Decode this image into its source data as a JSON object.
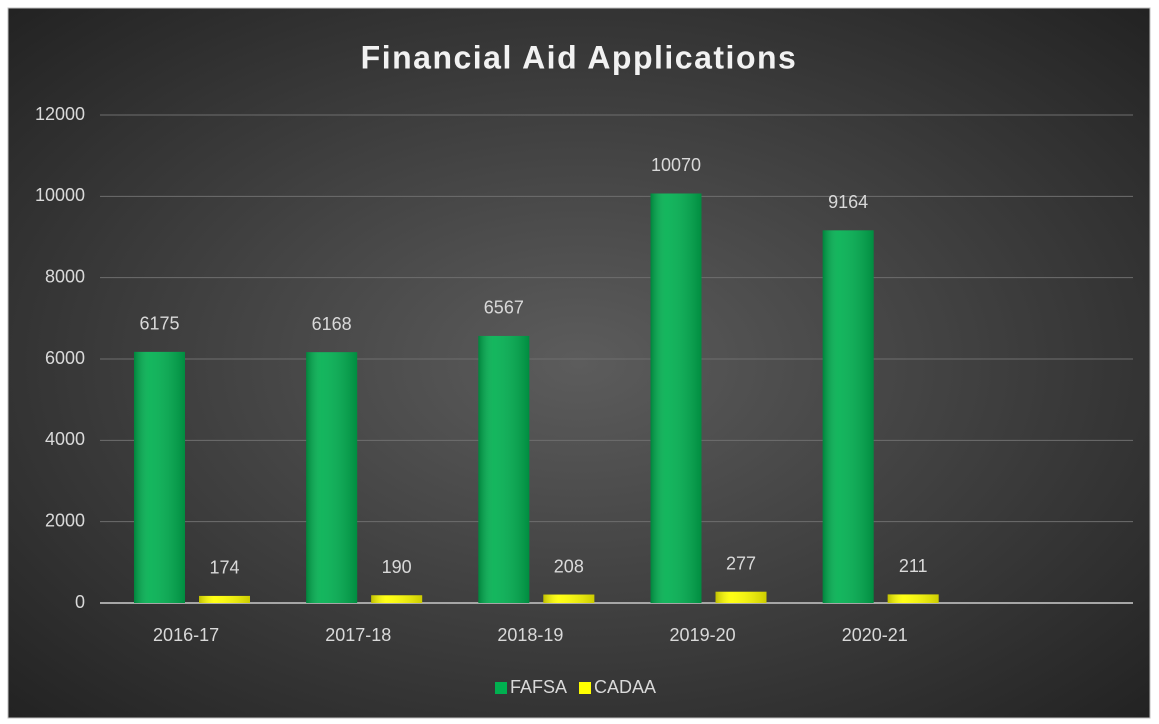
{
  "chart_data": {
    "type": "bar",
    "title": "Financial Aid Applications",
    "categories": [
      "2016-17",
      "2017-18",
      "2018-19",
      "2019-20",
      "2020-21",
      null
    ],
    "series": [
      {
        "name": "FAFSA",
        "color": "#00b050",
        "values": [
          6175,
          6168,
          6567,
          10070,
          9164,
          null
        ]
      },
      {
        "name": "CADAA",
        "color": "#ffff00",
        "values": [
          174,
          190,
          208,
          277,
          211,
          null
        ]
      }
    ],
    "ylim": [
      0,
      12000
    ],
    "yticks": [
      0,
      2000,
      4000,
      6000,
      8000,
      10000,
      12000
    ],
    "grid": true,
    "legend": "bottom"
  }
}
